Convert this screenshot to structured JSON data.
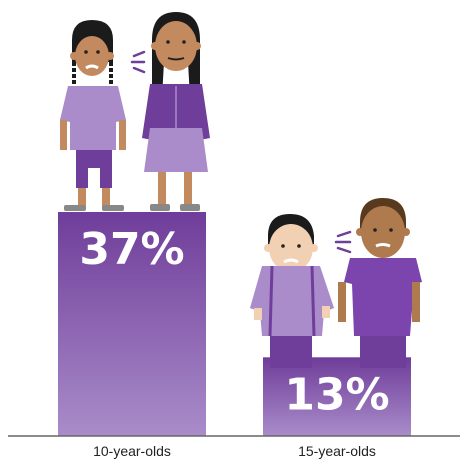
{
  "chart_data": {
    "type": "bar",
    "categories": [
      "10-year-olds",
      "15-year-olds"
    ],
    "values": [
      37,
      13
    ],
    "value_labels": [
      "37%",
      "13%"
    ],
    "ylim": [
      0,
      37
    ],
    "grid": false,
    "legend": "none",
    "colors": {
      "bar_top": "#6f3d9a",
      "bar_bottom": "#a98cc9",
      "baseline": "#666666",
      "label_text": "#222222",
      "value_text": "#ffffff"
    }
  },
  "illustration": {
    "left_bar": [
      "girl-with-braids-figure",
      "girl-in-dress-figure"
    ],
    "right_bar": [
      "boy-in-lavender-shirt-figure",
      "boy-in-purple-shirt-figure"
    ]
  }
}
